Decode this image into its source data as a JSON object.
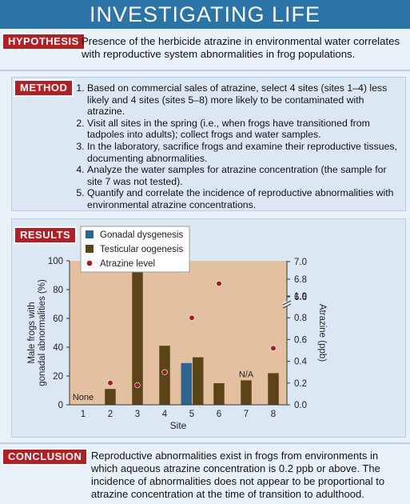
{
  "banner_title": "INVESTIGATING LIFE",
  "hypothesis": {
    "label": "HYPOTHESIS",
    "line1": "Presence of the herbicide atrazine in environmental water correlates",
    "line2": "with reproductive system abnormalities in frog populations."
  },
  "method": {
    "label": "METHOD",
    "steps": [
      "Based on commercial sales of atrazine, select 4 sites (sites 1–4) less likely and 4 sites (sites 5–8) more likely to be contaminated with atrazine.",
      "Visit all sites in the spring (i.e., when frogs have transitioned from tadpoles into adults); collect frogs and water samples.",
      "In the laboratory, sacrifice frogs and examine their reproductive tissues, documenting abnormalities.",
      "Analyze the water samples for atrazine concentration (the sample for site 7 was not tested).",
      "Quantify and correlate the incidence of reproductive abnormalities with environmental atrazine concentrations."
    ]
  },
  "results": {
    "label": "RESULTS"
  },
  "conclusion": {
    "label": "CONCLUSION",
    "line1": "Reproductive abnormalities exist in frogs from environments in",
    "line2": "which aqueous atrazine concentration is 0.2 ppb or above. The",
    "line3": "incidence of abnormalities does not appear to be proportional to",
    "line4": "atrazine concentration at the time of transition to adulthood."
  },
  "colors": {
    "dysgenesis": "#2d6691",
    "oogenesis": "#5a4418",
    "atrazine": "#a31b20",
    "plot_bg": "#e3c0a0"
  },
  "chart_data": {
    "type": "bar",
    "categories": [
      "1",
      "2",
      "3",
      "4",
      "5",
      "6",
      "7",
      "8"
    ],
    "xlabel": "Site",
    "ylabel": "Male frogs with gonadal abnormalities (%)",
    "y2label": "Atrazine (ppb)",
    "ylim": [
      0,
      100
    ],
    "yticks": [
      "0",
      "20",
      "40",
      "60",
      "80",
      "100"
    ],
    "y2ticks_lower": [
      "0.0",
      "0.2",
      "0.4",
      "0.6",
      "0.8",
      "1.0"
    ],
    "y2ticks_upper": [
      "6.6",
      "6.8",
      "7.0"
    ],
    "legend_position": "top-left",
    "series": [
      {
        "name": "Gonadal dysgenesis",
        "type": "bar",
        "values": [
          0,
          0,
          0,
          0,
          29,
          0,
          0,
          0
        ]
      },
      {
        "name": "Testicular oogenesis",
        "type": "bar",
        "values": [
          0,
          11,
          93,
          41,
          33,
          15,
          17,
          22
        ]
      },
      {
        "name": "Atrazine level",
        "type": "scatter",
        "axis": "right",
        "values": [
          null,
          0.2,
          0.18,
          0.3,
          0.8,
          6.75,
          null,
          0.52
        ]
      }
    ],
    "annotations": [
      {
        "site": "1",
        "text": "None"
      },
      {
        "site": "7",
        "text": "N/A"
      }
    ]
  }
}
